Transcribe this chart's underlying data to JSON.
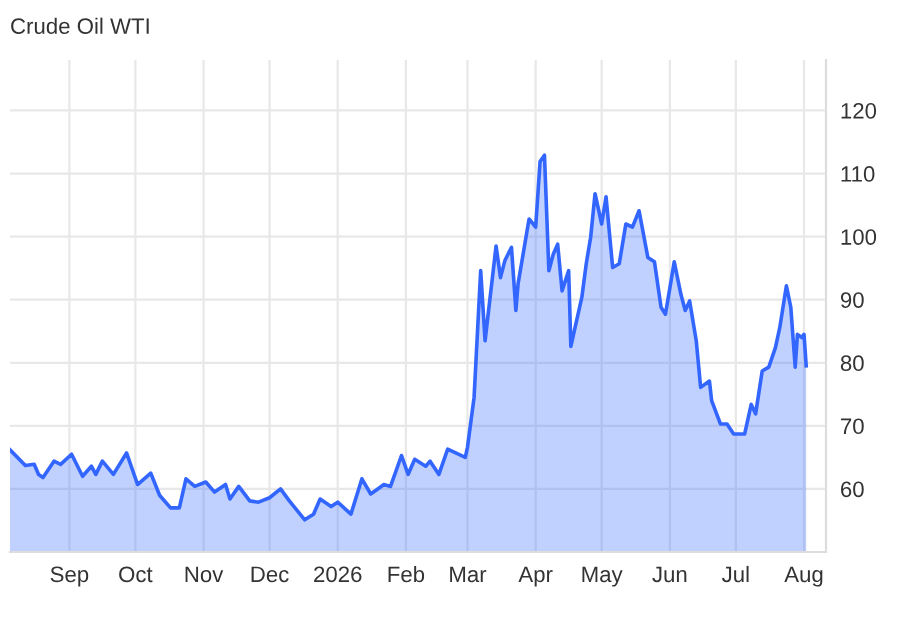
{
  "chart_data": {
    "type": "area",
    "title": "Crude Oil WTI",
    "x": [
      "2025-08-05",
      "2025-08-12",
      "2025-08-16",
      "2025-08-18",
      "2025-08-20",
      "2025-08-25",
      "2025-08-28",
      "2025-09-02",
      "2025-09-07",
      "2025-09-11",
      "2025-09-13",
      "2025-09-16",
      "2025-09-21",
      "2025-09-27",
      "2025-10-02",
      "2025-10-08",
      "2025-10-12",
      "2025-10-17",
      "2025-10-21",
      "2025-10-24",
      "2025-10-28",
      "2025-11-02",
      "2025-11-06",
      "2025-11-11",
      "2025-11-13",
      "2025-11-17",
      "2025-11-22",
      "2025-11-26",
      "2025-12-01",
      "2025-12-06",
      "2025-12-10",
      "2025-12-17",
      "2025-12-21",
      "2025-12-24",
      "2025-12-29",
      "2026-01-01",
      "2026-01-07",
      "2026-01-12",
      "2026-01-16",
      "2026-01-20",
      "2026-01-22",
      "2026-01-25",
      "2026-01-30",
      "2026-02-02",
      "2026-02-05",
      "2026-02-10",
      "2026-02-12",
      "2026-02-16",
      "2026-02-20",
      "2026-02-28",
      "2026-03-01",
      "2026-03-04",
      "2026-03-07",
      "2026-03-09",
      "2026-03-14",
      "2026-03-16",
      "2026-03-18",
      "2026-03-21",
      "2026-03-23",
      "2026-03-24",
      "2026-03-29",
      "2026-04-01",
      "2026-04-03",
      "2026-04-05",
      "2026-04-07",
      "2026-04-09",
      "2026-04-11",
      "2026-04-13",
      "2026-04-16",
      "2026-04-17",
      "2026-04-22",
      "2026-04-24",
      "2026-04-26",
      "2026-04-28",
      "2026-05-01",
      "2026-05-03",
      "2026-05-06",
      "2026-05-09",
      "2026-05-12",
      "2026-05-15",
      "2026-05-18",
      "2026-05-22",
      "2026-05-25",
      "2026-05-28",
      "2026-05-30",
      "2026-06-03",
      "2026-06-06",
      "2026-06-08",
      "2026-06-10",
      "2026-06-13",
      "2026-06-15",
      "2026-06-19",
      "2026-06-20",
      "2026-06-24",
      "2026-06-27",
      "2026-06-30",
      "2026-07-05",
      "2026-07-08",
      "2026-07-10",
      "2026-07-13",
      "2026-07-16",
      "2026-07-19",
      "2026-07-21",
      "2026-07-24",
      "2026-07-26",
      "2026-07-28",
      "2026-07-29",
      "2026-07-31",
      "2026-08-01",
      "2026-08-02"
    ],
    "series": [
      {
        "color": "#3366ff",
        "values": [
          66.2,
          63.7,
          63.9,
          62.3,
          61.8,
          64.4,
          63.9,
          65.5,
          62.0,
          63.6,
          62.3,
          64.4,
          62.3,
          65.7,
          60.7,
          62.5,
          59.0,
          57.0,
          57.0,
          61.6,
          60.4,
          61.1,
          59.5,
          60.7,
          58.4,
          60.4,
          58.1,
          57.9,
          58.6,
          60.0,
          58.1,
          55.1,
          56.0,
          58.4,
          57.2,
          57.9,
          56.0,
          61.6,
          59.2,
          60.2,
          60.7,
          60.4,
          65.3,
          62.3,
          64.7,
          63.6,
          64.4,
          62.3,
          66.3,
          65.0,
          66.6,
          74.5,
          94.6,
          83.5,
          98.5,
          93.5,
          96.2,
          98.3,
          88.3,
          92.5,
          102.8,
          101.5,
          111.9,
          112.9,
          94.6,
          97.2,
          98.8,
          91.4,
          94.6,
          82.6,
          90.4,
          95.7,
          99.9,
          106.8,
          102.0,
          106.3,
          95.1,
          95.7,
          102.0,
          101.5,
          104.1,
          96.7,
          96.0,
          88.8,
          87.7,
          96.0,
          90.9,
          88.3,
          89.8,
          83.5,
          76.1,
          77.1,
          74.0,
          70.3,
          70.3,
          68.7,
          68.7,
          73.4,
          71.9,
          78.7,
          79.3,
          82.4,
          85.6,
          92.2,
          88.8,
          79.3,
          84.5,
          84.0,
          84.5,
          79.5
        ]
      }
    ],
    "xlim": [
      "2025-08-05",
      "2026-08-11"
    ],
    "xticks": [
      {
        "value": "2025-09-01",
        "label": "Sep"
      },
      {
        "value": "2025-10-01",
        "label": "Oct"
      },
      {
        "value": "2025-11-01",
        "label": "Nov"
      },
      {
        "value": "2025-12-01",
        "label": "Dec"
      },
      {
        "value": "2026-01-01",
        "label": "2026"
      },
      {
        "value": "2026-02-01",
        "label": "Feb"
      },
      {
        "value": "2026-03-01",
        "label": "Mar"
      },
      {
        "value": "2026-04-01",
        "label": "Apr"
      },
      {
        "value": "2026-05-01",
        "label": "May"
      },
      {
        "value": "2026-06-01",
        "label": "Jun"
      },
      {
        "value": "2026-07-01",
        "label": "Jul"
      },
      {
        "value": "2026-08-01",
        "label": "Aug"
      }
    ],
    "ylim": [
      50,
      128
    ],
    "yticks": [
      60,
      70,
      80,
      90,
      100,
      110,
      120
    ],
    "grid": true
  }
}
